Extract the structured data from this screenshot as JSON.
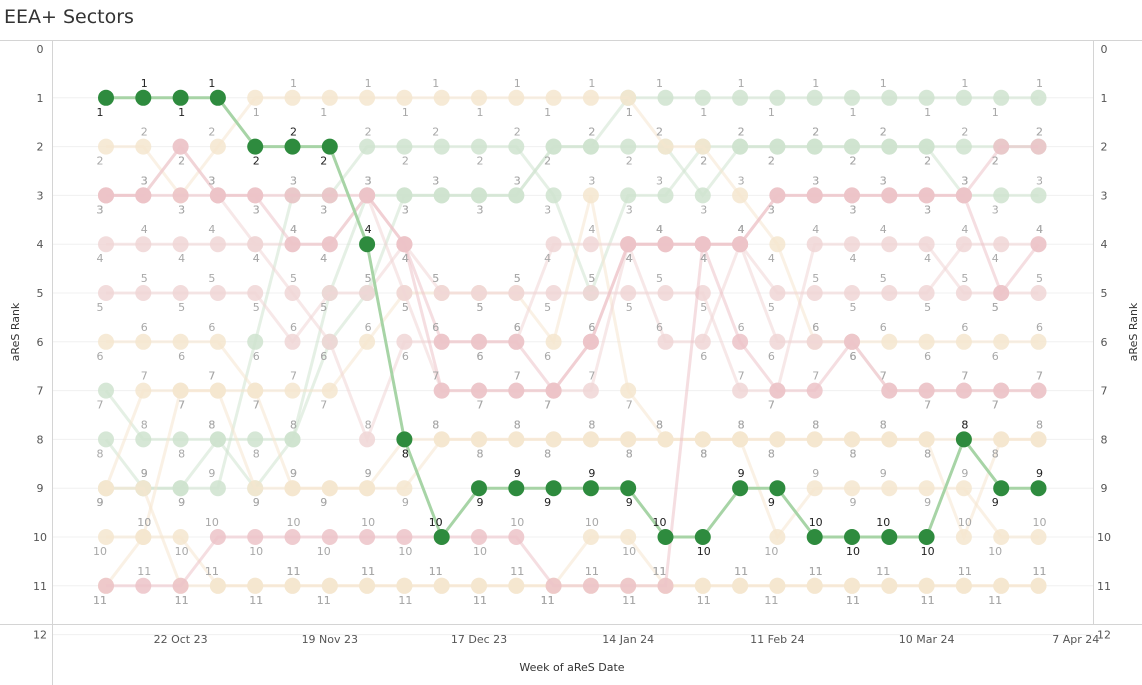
{
  "title": "EEA+ Sectors",
  "chart_data": {
    "type": "line",
    "title": "EEA+ Sectors",
    "xlabel": "Week of aReS Date",
    "ylabel": "aReS Rank",
    "y_reversed": true,
    "ylim": [
      0,
      12
    ],
    "yticks": [
      "0",
      "1",
      "2",
      "3",
      "4",
      "5",
      "6",
      "7",
      "8",
      "9",
      "10",
      "11",
      "12"
    ],
    "x_tick_labels": [
      "22 Oct 23",
      "19 Nov 23",
      "17 Dec 23",
      "14 Jan 24",
      "11 Feb 24",
      "10 Mar 24",
      "7 Apr 24"
    ],
    "grid": true,
    "legend": "none",
    "highlighted_series_index": 0,
    "series": [
      {
        "color": "#2e8b3e",
        "highlight": true,
        "values": [
          1,
          1,
          1,
          1,
          2,
          2,
          2,
          4,
          8,
          10,
          9,
          9,
          9,
          9,
          9,
          10,
          10,
          9,
          9,
          10,
          10,
          10,
          10,
          8,
          9,
          9
        ]
      },
      {
        "color": "#cfe3cf",
        "values": [
          7,
          8,
          8,
          8,
          9,
          8,
          6,
          5,
          3,
          3,
          3,
          3,
          2,
          2,
          1,
          1,
          1,
          1,
          1,
          1,
          1,
          1,
          1,
          1,
          1,
          1
        ]
      },
      {
        "color": "#cfe3cf",
        "values": [
          8,
          9,
          9,
          9,
          6,
          3,
          3,
          2,
          2,
          2,
          2,
          2,
          3,
          5,
          3,
          3,
          2,
          2,
          2,
          2,
          2,
          2,
          2,
          3,
          3,
          3
        ]
      },
      {
        "color": "#cfe3cf",
        "values": [
          9,
          9,
          9,
          8,
          8,
          8,
          5,
          3,
          3,
          3,
          3,
          3,
          2,
          2,
          2,
          2,
          3,
          2,
          2,
          2,
          2,
          2,
          2,
          2,
          2,
          2
        ]
      },
      {
        "color": "#f5e6cf",
        "values": [
          2,
          2,
          3,
          2,
          1,
          1,
          1,
          1,
          1,
          1,
          1,
          1,
          1,
          1,
          1,
          2,
          2,
          3,
          4,
          6,
          6,
          6,
          6,
          6,
          6,
          6
        ]
      },
      {
        "color": "#f5e6cf",
        "values": [
          6,
          6,
          6,
          6,
          7,
          9,
          9,
          9,
          9,
          8,
          8,
          8,
          8,
          8,
          8,
          8,
          8,
          8,
          8,
          8,
          8,
          8,
          8,
          10,
          8,
          8
        ]
      },
      {
        "color": "#f5e6cf",
        "values": [
          9,
          7,
          7,
          7,
          9,
          9,
          9,
          9,
          8,
          8,
          8,
          8,
          8,
          8,
          8,
          8,
          8,
          8,
          8,
          8,
          8,
          8,
          8,
          8,
          8,
          8
        ]
      },
      {
        "color": "#f5e6cf",
        "values": [
          10,
          10,
          7,
          7,
          7,
          7,
          7,
          6,
          5,
          5,
          5,
          5,
          6,
          3,
          7,
          8,
          8,
          8,
          10,
          9,
          9,
          9,
          9,
          9,
          10,
          10
        ]
      },
      {
        "color": "#f5e6cf",
        "values": [
          11,
          10,
          10,
          11,
          11,
          11,
          11,
          11,
          11,
          11,
          11,
          11,
          11,
          10,
          10,
          11,
          11,
          11,
          11,
          11,
          11,
          11,
          11,
          11,
          11,
          11
        ]
      },
      {
        "color": "#f5e6cf",
        "values": [
          9,
          9,
          11,
          11,
          11,
          11,
          11,
          11,
          11,
          11,
          11,
          11,
          11,
          11,
          11,
          11,
          11,
          11,
          11,
          11,
          11,
          11,
          11,
          11,
          11,
          11
        ]
      },
      {
        "color": "#f0d6d6",
        "values": [
          4,
          4,
          4,
          4,
          4,
          5,
          6,
          8,
          6,
          6,
          6,
          6,
          4,
          4,
          4,
          6,
          6,
          4,
          5,
          5,
          5,
          5,
          5,
          4,
          4,
          4
        ]
      },
      {
        "color": "#f0d6d6",
        "values": [
          5,
          5,
          5,
          5,
          5,
          6,
          5,
          5,
          4,
          5,
          5,
          5,
          5,
          5,
          5,
          5,
          5,
          7,
          7,
          4,
          4,
          4,
          4,
          5,
          5,
          5
        ]
      },
      {
        "color": "#f0d6d6",
        "values": [
          3,
          3,
          2,
          3,
          4,
          4,
          4,
          3,
          5,
          7,
          7,
          7,
          7,
          7,
          4,
          4,
          4,
          4,
          6,
          6,
          6,
          7,
          7,
          7,
          7,
          7
        ]
      },
      {
        "color": "#ecc3c8",
        "values": [
          3,
          3,
          2,
          3,
          3,
          4,
          4,
          3,
          4,
          6,
          6,
          6,
          7,
          6,
          4,
          4,
          4,
          6,
          7,
          7,
          6,
          7,
          7,
          7,
          7,
          7
        ]
      },
      {
        "color": "#ecc3c8",
        "values": [
          11,
          11,
          11,
          10,
          10,
          10,
          10,
          10,
          10,
          10,
          10,
          10,
          11,
          11,
          11,
          11,
          4,
          4,
          3,
          3,
          3,
          3,
          3,
          3,
          2,
          2
        ]
      },
      {
        "color": "#ecc3c8",
        "values": [
          3,
          3,
          3,
          3,
          3,
          3,
          3,
          3,
          4,
          7,
          7,
          7,
          7,
          6,
          4,
          4,
          4,
          4,
          3,
          3,
          3,
          3,
          3,
          3,
          5,
          4
        ]
      }
    ]
  }
}
